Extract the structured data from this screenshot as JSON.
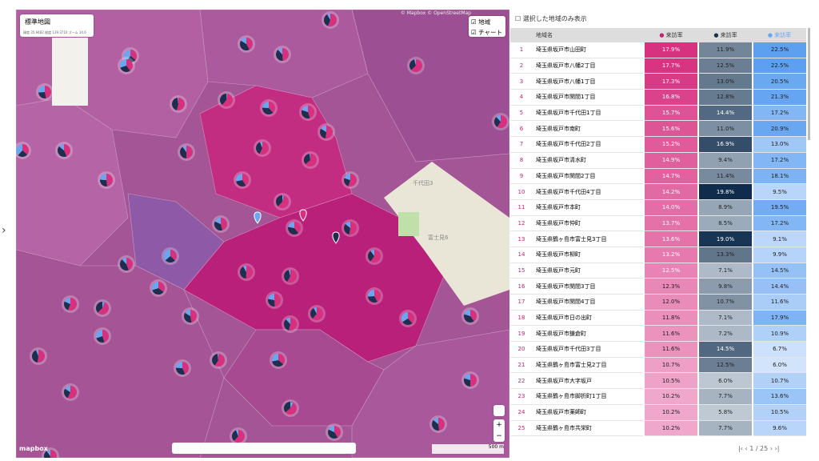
{
  "map": {
    "layer_select": "標準地図",
    "coords": "緯度 35.9482 経度 139.3710 ズーム 14.6",
    "attribution": "© Mapbox © OpenStreetMap",
    "toggles": [
      "地域",
      "チャート"
    ],
    "labels": [
      "千代田3",
      "富士見6"
    ],
    "scale": "500 m",
    "logo": "mapbox"
  },
  "panel": {
    "filter": "選択した地域のみ表示",
    "columns": [
      "地域名",
      "来訪率",
      "来訪率",
      "来訪率"
    ],
    "pagination": "1 / 25",
    "rows": [
      [
        "1",
        "埼玉県坂戸市山田町",
        "17.9%",
        "11.9%",
        "22.5%"
      ],
      [
        "2",
        "埼玉県坂戸市八幡2丁目",
        "17.7%",
        "12.5%",
        "22.5%"
      ],
      [
        "3",
        "埼玉県坂戸市八幡1丁目",
        "17.3%",
        "13.0%",
        "20.5%"
      ],
      [
        "4",
        "埼玉県坂戸市関間1丁目",
        "16.8%",
        "12.8%",
        "21.3%"
      ],
      [
        "5",
        "埼玉県坂戸市千代田1丁目",
        "15.7%",
        "14.4%",
        "17.2%"
      ],
      [
        "6",
        "埼玉県坂戸市南町",
        "15.6%",
        "11.0%",
        "20.9%"
      ],
      [
        "7",
        "埼玉県坂戸市千代田2丁目",
        "15.2%",
        "16.9%",
        "13.0%"
      ],
      [
        "8",
        "埼玉県坂戸市清水町",
        "14.9%",
        "9.4%",
        "17.2%"
      ],
      [
        "9",
        "埼玉県坂戸市関間2丁目",
        "14.7%",
        "11.4%",
        "18.1%"
      ],
      [
        "10",
        "埼玉県坂戸市千代田4丁目",
        "14.2%",
        "19.8%",
        "9.5%"
      ],
      [
        "11",
        "埼玉県坂戸市本町",
        "14.0%",
        "8.9%",
        "19.5%"
      ],
      [
        "12",
        "埼玉県坂戸市仲町",
        "13.7%",
        "8.5%",
        "17.2%"
      ],
      [
        "13",
        "埼玉県鶴ヶ島市富士見3丁目",
        "13.6%",
        "19.0%",
        "9.1%"
      ],
      [
        "14",
        "埼玉県坂戸市柳町",
        "13.2%",
        "13.3%",
        "9.9%"
      ],
      [
        "15",
        "埼玉県坂戸市元町",
        "12.5%",
        "7.1%",
        "14.5%"
      ],
      [
        "16",
        "埼玉県坂戸市関間3丁目",
        "12.3%",
        "9.8%",
        "14.4%"
      ],
      [
        "17",
        "埼玉県坂戸市関間4丁目",
        "12.0%",
        "10.7%",
        "11.6%"
      ],
      [
        "18",
        "埼玉県坂戸市日の出町",
        "11.8%",
        "7.1%",
        "17.9%"
      ],
      [
        "19",
        "埼玉県坂戸市鎌倉町",
        "11.6%",
        "7.2%",
        "10.9%"
      ],
      [
        "20",
        "埼玉県坂戸市千代田3丁目",
        "11.6%",
        "14.5%",
        "6.7%"
      ],
      [
        "21",
        "埼玉県鶴ヶ島市富士見2丁目",
        "10.7%",
        "12.5%",
        "6.0%"
      ],
      [
        "22",
        "埼玉県坂戸市大字坂戸",
        "10.5%",
        "6.0%",
        "10.7%"
      ],
      [
        "23",
        "埼玉県鶴ヶ島市脚折町1丁目",
        "10.2%",
        "7.7%",
        "13.6%"
      ],
      [
        "24",
        "埼玉県坂戸市薬師町",
        "10.2%",
        "5.8%",
        "10.5%"
      ],
      [
        "25",
        "埼玉県鶴ヶ島市共栄町",
        "10.2%",
        "7.7%",
        "9.6%"
      ]
    ]
  }
}
